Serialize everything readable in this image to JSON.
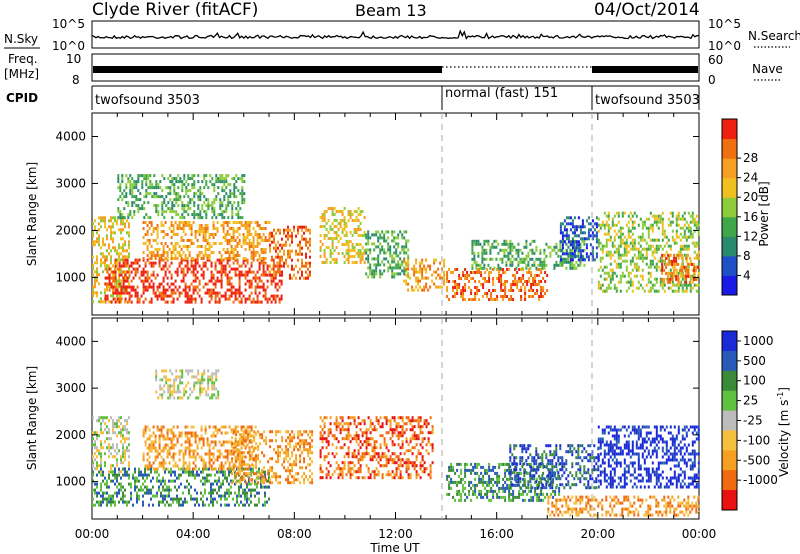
{
  "header": {
    "title": "Clyde River (fitACF)",
    "beam": "Beam 13",
    "date": "04/Oct/2014"
  },
  "nsky": {
    "label": "N.Sky",
    "tick_top": "10^5",
    "tick_bottom": "10^0",
    "right_label": "N.Search"
  },
  "freq": {
    "label_line1": "Freq.",
    "label_line2": "[MHz]",
    "ticks": [
      "10",
      "8"
    ],
    "right_ticks": [
      "60",
      "0"
    ],
    "right_label": "Nave"
  },
  "cpid": {
    "label": "CPID",
    "segments": [
      {
        "name": "twofsound 3503",
        "start_hour": 0,
        "end_hour": 14
      },
      {
        "name": "normal (fast) 151",
        "start_hour": 14,
        "end_hour": 20
      },
      {
        "name": "twofsound 3503",
        "start_hour": 20,
        "end_hour": 24
      }
    ]
  },
  "colors": {
    "power": [
      "#1a1ae6",
      "#2050c8",
      "#2a8a6e",
      "#3fa64a",
      "#8ccc3a",
      "#f0c020",
      "#f5a020",
      "#f07010",
      "#ee2010"
    ],
    "velocity": [
      "#1a2ad6",
      "#2a5ab8",
      "#3a8a3a",
      "#60c040",
      "#bcbcbc",
      "#f5c040",
      "#f5a020",
      "#f06a10",
      "#e81010"
    ]
  },
  "chart_data": [
    {
      "type": "heatmap",
      "name": "power",
      "ylabel": "Slant Range [km]",
      "xlabel": "",
      "x_ticks": [
        "00:00",
        "04:00",
        "08:00",
        "12:00",
        "16:00",
        "20:00",
        "00:00"
      ],
      "y_ticks": [
        "1000",
        "2000",
        "3000",
        "4000"
      ],
      "xlim": [
        0,
        24
      ],
      "ylim": [
        200,
        4500
      ],
      "colorbar": {
        "label": "Power [dB]",
        "ticks": [
          "4",
          "8",
          "12",
          "16",
          "20",
          "24",
          "28"
        ]
      },
      "regions": [
        {
          "t0": 0.0,
          "t1": 1.5,
          "r0": 500,
          "r1": 2300,
          "level": 5
        },
        {
          "t0": 0.5,
          "t1": 7.5,
          "r0": 500,
          "r1": 1400,
          "level": 8
        },
        {
          "t0": 2.0,
          "t1": 7.0,
          "r0": 1400,
          "r1": 2200,
          "level": 6
        },
        {
          "t0": 1.0,
          "t1": 6.0,
          "r0": 2300,
          "r1": 3200,
          "level": 3
        },
        {
          "t0": 7.0,
          "t1": 8.6,
          "r0": 1000,
          "r1": 2100,
          "level": 7
        },
        {
          "t0": 9.0,
          "t1": 10.8,
          "r0": 1300,
          "r1": 2500,
          "level": 5
        },
        {
          "t0": 10.8,
          "t1": 12.5,
          "r0": 1000,
          "r1": 2000,
          "level": 3
        },
        {
          "t0": 12.3,
          "t1": 13.9,
          "r0": 700,
          "r1": 1400,
          "level": 6
        },
        {
          "t0": 14.0,
          "t1": 18.0,
          "r0": 500,
          "r1": 1200,
          "level": 7
        },
        {
          "t0": 15.0,
          "t1": 19.5,
          "r0": 1200,
          "r1": 1800,
          "level": 3
        },
        {
          "t0": 18.5,
          "t1": 20.0,
          "r0": 1400,
          "r1": 2300,
          "level": 1
        },
        {
          "t0": 20.0,
          "t1": 24.0,
          "r0": 700,
          "r1": 2400,
          "level": 4
        },
        {
          "t0": 22.5,
          "t1": 24.0,
          "r0": 900,
          "r1": 1500,
          "level": 7
        }
      ]
    },
    {
      "type": "heatmap",
      "name": "velocity",
      "ylabel": "Slant Range [km]",
      "xlabel": "Time UT",
      "x_ticks": [
        "00:00",
        "04:00",
        "08:00",
        "12:00",
        "16:00",
        "20:00",
        "00:00"
      ],
      "y_ticks": [
        "1000",
        "2000",
        "3000",
        "4000"
      ],
      "xlim": [
        0,
        24
      ],
      "ylim": [
        200,
        4500
      ],
      "colorbar": {
        "label": "Velocity [m s^-1]",
        "ticks": [
          "1000",
          "500",
          "100",
          "25",
          "-25",
          "-100",
          "-500",
          "-1000"
        ]
      },
      "regions": [
        {
          "t0": 0.0,
          "t1": 1.5,
          "r0": 1200,
          "r1": 2400,
          "level": 4
        },
        {
          "t0": 0.0,
          "t1": 7.0,
          "r0": 500,
          "r1": 1300,
          "level": 2
        },
        {
          "t0": 2.0,
          "t1": 6.5,
          "r0": 1300,
          "r1": 2200,
          "level": 6
        },
        {
          "t0": 2.5,
          "t1": 5.0,
          "r0": 2800,
          "r1": 3400,
          "level": 4
        },
        {
          "t0": 5.5,
          "t1": 8.7,
          "r0": 1000,
          "r1": 2100,
          "level": 6
        },
        {
          "t0": 9.0,
          "t1": 13.5,
          "r0": 1100,
          "r1": 2400,
          "level": 7
        },
        {
          "t0": 14.0,
          "t1": 18.5,
          "r0": 600,
          "r1": 1400,
          "level": 2
        },
        {
          "t0": 16.5,
          "t1": 20.0,
          "r0": 900,
          "r1": 1800,
          "level": 1
        },
        {
          "t0": 20.0,
          "t1": 24.0,
          "r0": 900,
          "r1": 2200,
          "level": 0
        },
        {
          "t0": 18.0,
          "t1": 24.0,
          "r0": 300,
          "r1": 700,
          "level": 6
        }
      ]
    }
  ]
}
